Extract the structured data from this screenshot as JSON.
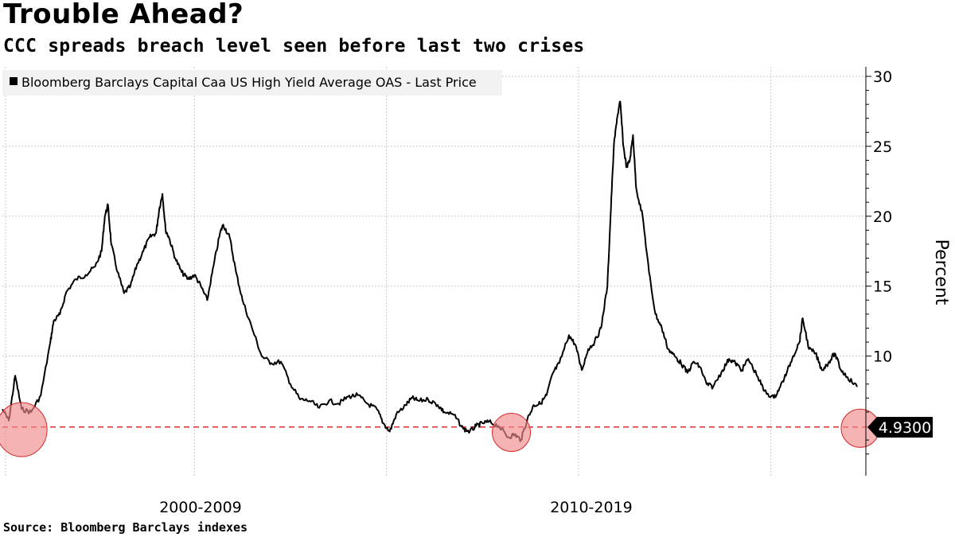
{
  "title": "Trouble Ahead?",
  "subtitle": "CCC spreads breach level seen before last two crises",
  "source": "Source: Bloomberg Barclays indexes",
  "colors": {
    "series": "#000000",
    "reference_line": "#e8242b",
    "highlight_fill": "#f08a8a",
    "highlight_stroke": "#d42a2a",
    "grid": "#c8c8c8",
    "legend_bg": "#f2f2f2",
    "last_value_bg": "#000000"
  },
  "chart_data": {
    "type": "line",
    "ylabel": "Percent",
    "ylim": [
      2,
      30.5
    ],
    "yticks": [
      10,
      15,
      20,
      25,
      30
    ],
    "grid": true,
    "legend_position": "top-left",
    "x_decades": [
      "2000-2009",
      "2010-2019"
    ],
    "x_range": [
      "1997-06",
      "2019-11"
    ],
    "series": [
      {
        "name": "Bloomberg Barclays Capital Caa US High Yield Average OAS - Last Price",
        "points": [
          [
            "1997-06",
            6.2
          ],
          [
            "1997-08",
            5.4
          ],
          [
            "1997-10",
            8.6
          ],
          [
            "1997-12",
            6.2
          ],
          [
            "1998-03",
            6.0
          ],
          [
            "1998-06",
            7.2
          ],
          [
            "1998-09",
            11.0
          ],
          [
            "1998-10",
            12.5
          ],
          [
            "1998-12",
            13.0
          ],
          [
            "1999-02",
            14.6
          ],
          [
            "1999-05",
            15.5
          ],
          [
            "1999-08",
            15.8
          ],
          [
            "1999-11",
            16.4
          ],
          [
            "2000-01",
            17.5
          ],
          [
            "2000-02",
            20.0
          ],
          [
            "2000-03",
            20.8
          ],
          [
            "2000-04",
            18.0
          ],
          [
            "2000-06",
            16.0
          ],
          [
            "2000-08",
            14.5
          ],
          [
            "2000-10",
            15.0
          ],
          [
            "2000-12",
            16.5
          ],
          [
            "2001-02",
            17.5
          ],
          [
            "2001-04",
            18.5
          ],
          [
            "2001-06",
            18.8
          ],
          [
            "2001-07",
            20.5
          ],
          [
            "2001-08",
            21.6
          ],
          [
            "2001-09",
            19.0
          ],
          [
            "2001-10",
            18.5
          ],
          [
            "2001-12",
            17.0
          ],
          [
            "2002-02",
            16.0
          ],
          [
            "2002-04",
            15.5
          ],
          [
            "2002-06",
            15.8
          ],
          [
            "2002-08",
            15.0
          ],
          [
            "2002-10",
            14.0
          ],
          [
            "2002-12",
            16.5
          ],
          [
            "2003-02",
            18.8
          ],
          [
            "2003-03",
            19.4
          ],
          [
            "2003-05",
            18.5
          ],
          [
            "2003-07",
            16.0
          ],
          [
            "2003-09",
            14.0
          ],
          [
            "2003-12",
            12.0
          ],
          [
            "2004-03",
            10.0
          ],
          [
            "2004-06",
            9.5
          ],
          [
            "2004-09",
            9.6
          ],
          [
            "2004-12",
            8.0
          ],
          [
            "2005-03",
            6.9
          ],
          [
            "2005-06",
            6.8
          ],
          [
            "2005-09",
            6.3
          ],
          [
            "2005-12",
            6.8
          ],
          [
            "2006-03",
            6.6
          ],
          [
            "2006-06",
            7.1
          ],
          [
            "2006-09",
            7.2
          ],
          [
            "2006-12",
            6.6
          ],
          [
            "2007-03",
            6.2
          ],
          [
            "2007-05",
            5.2
          ],
          [
            "2007-07",
            4.6
          ],
          [
            "2007-09",
            5.8
          ],
          [
            "2007-12",
            6.5
          ],
          [
            "2008-02",
            7.0
          ],
          [
            "2008-04",
            6.8
          ],
          [
            "2008-07",
            6.9
          ],
          [
            "2008-10",
            6.5
          ],
          [
            "2008-12",
            6.0
          ],
          [
            "2009-03",
            5.8
          ],
          [
            "2009-06",
            4.8
          ],
          [
            "2009-08",
            4.6
          ],
          [
            "2009-10",
            5.0
          ],
          [
            "2009-12",
            5.2
          ],
          [
            "2010-02",
            5.3
          ],
          [
            "2010-05",
            5.0
          ],
          [
            "2010-08",
            4.2
          ],
          [
            "2010-10",
            4.4
          ],
          [
            "2010-12",
            4.0
          ],
          [
            "2011-02",
            5.5
          ],
          [
            "2011-04",
            6.5
          ],
          [
            "2011-06",
            6.6
          ],
          [
            "2011-08",
            7.2
          ],
          [
            "2011-10",
            8.8
          ],
          [
            "2011-12",
            9.5
          ],
          [
            "2012-03",
            11.5
          ],
          [
            "2012-05",
            10.8
          ],
          [
            "2012-07",
            9.0
          ],
          [
            "2012-09",
            10.5
          ],
          [
            "2012-11",
            11.0
          ],
          [
            "2013-01",
            12.0
          ],
          [
            "2013-03",
            15.0
          ],
          [
            "2013-04",
            20.0
          ],
          [
            "2013-05",
            25.0
          ],
          [
            "2013-06",
            27.0
          ],
          [
            "2013-07",
            28.2
          ],
          [
            "2013-08",
            25.0
          ],
          [
            "2013-09",
            23.5
          ],
          [
            "2013-10",
            24.0
          ],
          [
            "2013-11",
            25.8
          ],
          [
            "2013-12",
            22.0
          ],
          [
            "2014-02",
            20.0
          ],
          [
            "2014-04",
            16.0
          ],
          [
            "2014-06",
            13.0
          ],
          [
            "2014-08",
            12.0
          ],
          [
            "2014-10",
            10.5
          ],
          [
            "2014-12",
            10.0
          ],
          [
            "2015-02",
            9.5
          ],
          [
            "2015-04",
            8.8
          ],
          [
            "2015-06",
            9.6
          ],
          [
            "2015-08",
            9.2
          ],
          [
            "2015-10",
            8.0
          ],
          [
            "2015-12",
            7.8
          ],
          [
            "2016-03",
            9.0
          ],
          [
            "2016-05",
            9.8
          ],
          [
            "2016-07",
            9.5
          ],
          [
            "2016-09",
            9.0
          ],
          [
            "2016-11",
            9.8
          ],
          [
            "2017-02",
            8.5
          ],
          [
            "2017-04",
            7.5
          ],
          [
            "2017-07",
            7.0
          ],
          [
            "2017-09",
            7.8
          ],
          [
            "2017-11",
            8.8
          ],
          [
            "2018-01",
            10.0
          ],
          [
            "2018-03",
            11.0
          ],
          [
            "2018-04",
            12.7
          ],
          [
            "2018-06",
            10.5
          ],
          [
            "2018-08",
            10.2
          ],
          [
            "2018-10",
            9.0
          ],
          [
            "2018-12",
            9.5
          ],
          [
            "2019-02",
            10.2
          ],
          [
            "2019-04",
            9.0
          ],
          [
            "2019-06",
            8.5
          ],
          [
            "2019-09",
            7.8
          ]
        ]
      }
    ],
    "reference_line": {
      "value": 4.93
    },
    "last_value": "4.9300",
    "highlights": [
      {
        "x": "1997-12",
        "y": 4.8
      },
      {
        "x": "2010-09",
        "y": 4.6
      },
      {
        "x": "2019-10",
        "y": 4.9
      }
    ]
  }
}
